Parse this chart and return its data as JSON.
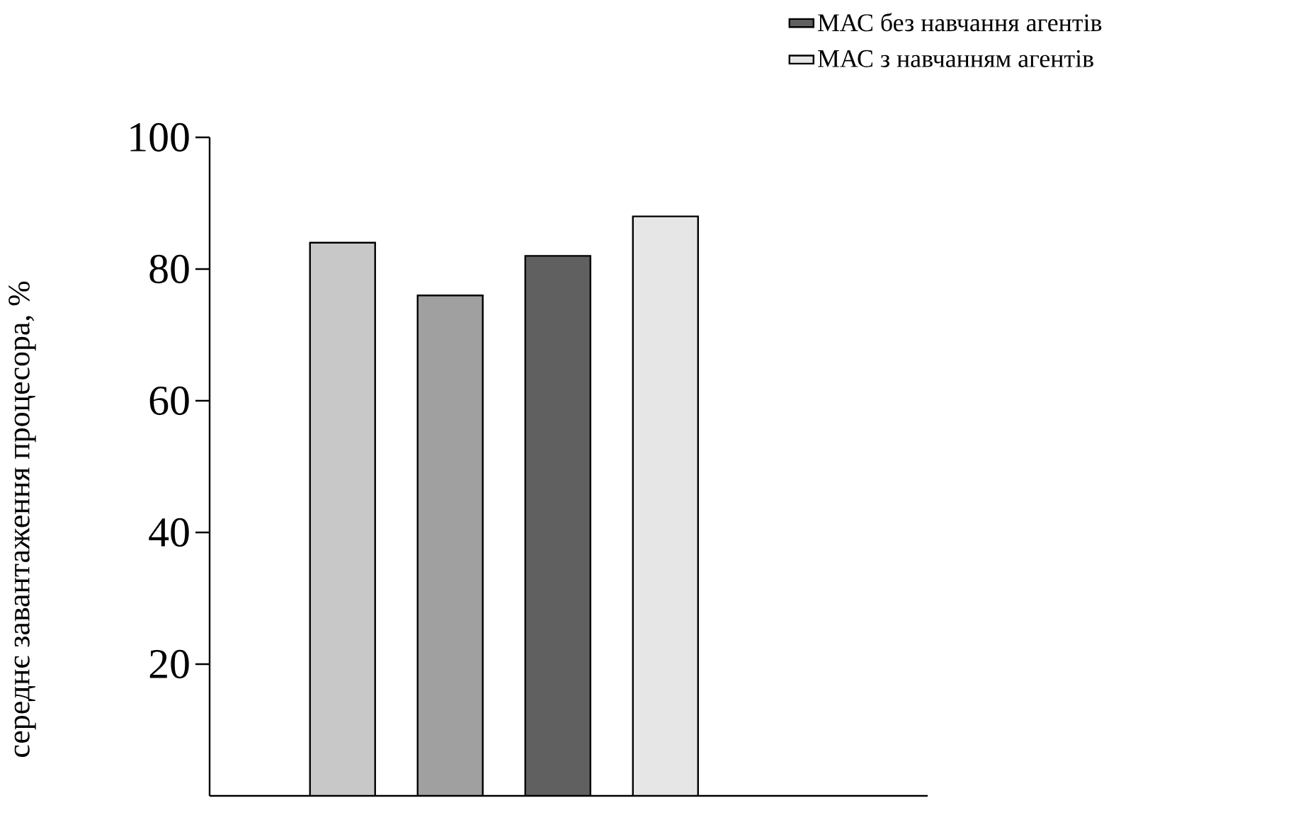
{
  "chart_data": {
    "type": "bar",
    "ylabel": "середнє завантаження процесора, %",
    "categories": [
      null
    ],
    "series": [
      {
        "color": "#c8c8c8",
        "values": [
          84
        ]
      },
      {
        "color": "#a0a0a0",
        "values": [
          76
        ]
      },
      {
        "name": "МАС без навчання агентів",
        "color": "#606060",
        "values": [
          82
        ]
      },
      {
        "name": "МАС з навчанням агентів",
        "color": "#e6e6e6",
        "values": [
          88
        ]
      }
    ],
    "ylim": [
      0,
      100
    ],
    "yticks": [
      20,
      40,
      60,
      80,
      100
    ],
    "legend": "top right"
  }
}
